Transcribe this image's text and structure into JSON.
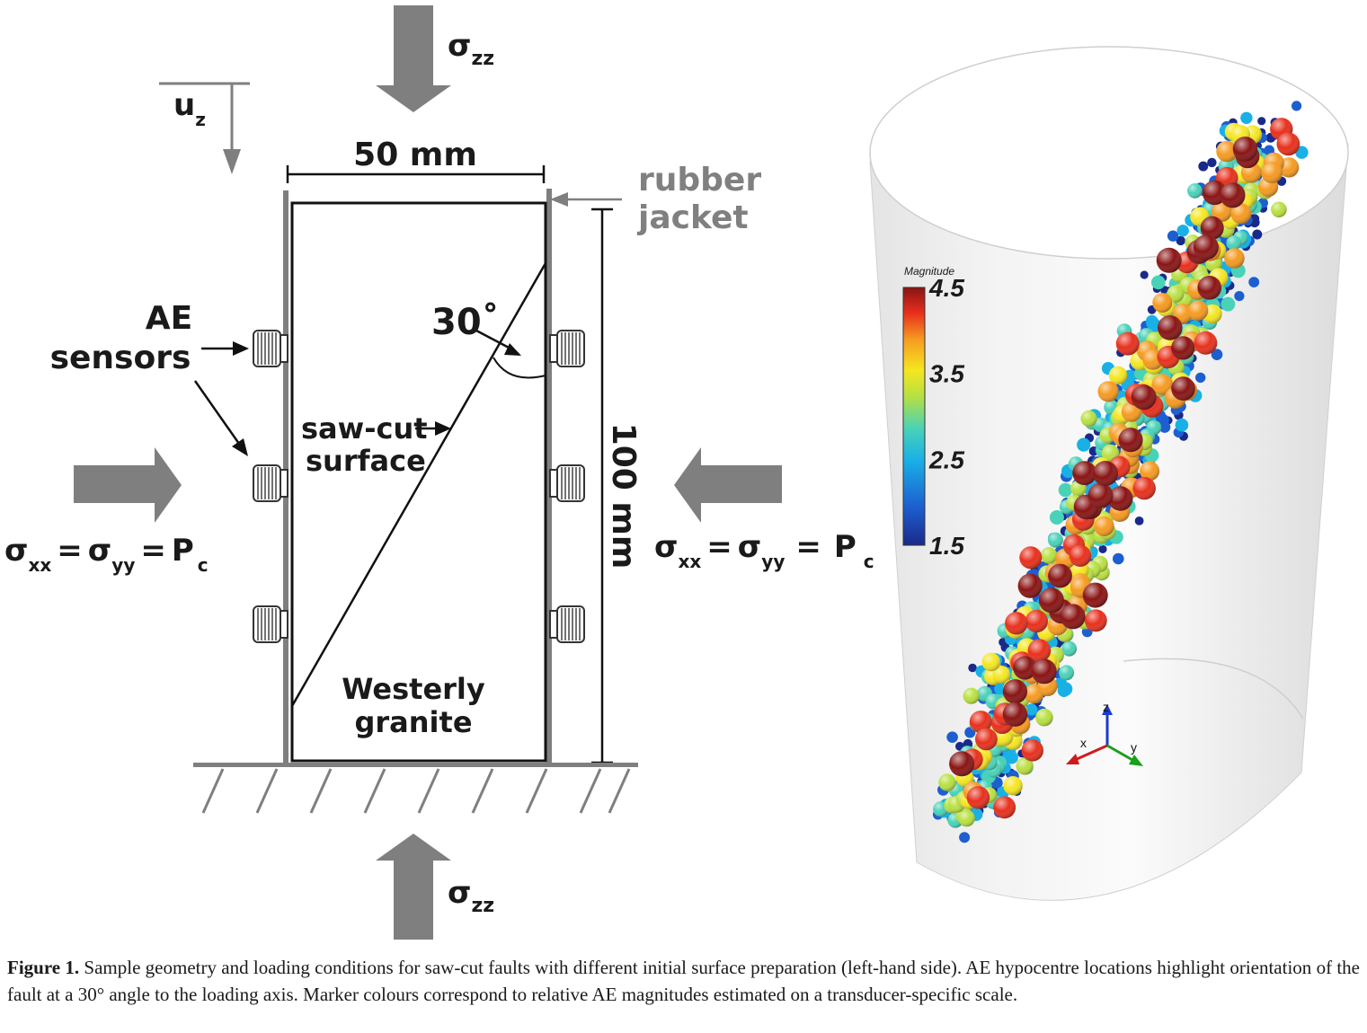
{
  "diagram": {
    "sigma_zz_top": {
      "base": "σ",
      "sub": "zz"
    },
    "sigma_zz_bottom": {
      "base": "σ",
      "sub": "zz"
    },
    "uz": {
      "base": "u",
      "sub": "z"
    },
    "width_label": "50 mm",
    "height_label": "100 mm",
    "jacket_line1": "rubber",
    "jacket_line2": "jacket",
    "sensors_line1": "AE",
    "sensors_line2": "sensors",
    "angle_label": "30˚",
    "sawcut_line1": "saw-cut",
    "sawcut_line2": "surface",
    "granite_line1": "Westerly",
    "granite_line2": "granite",
    "pressure_left": {
      "s1": "σ",
      "sub1": "xx",
      "eq1": "=",
      "s2": "σ",
      "sub2": "yy",
      "eq2": "=",
      "p": "P",
      "subp": "c"
    },
    "pressure_right": {
      "s1": "σ",
      "sub1": "xx",
      "eq1": "=",
      "s2": "σ",
      "sub2": "yy",
      "eq2": "=",
      "p": "P",
      "subp": "c"
    }
  },
  "colorbar": {
    "title": "Magnitude",
    "ticks": [
      "4.5",
      "3.5",
      "2.5",
      "1.5"
    ],
    "min": 1.5,
    "max": 4.5,
    "colormap": [
      "#1a2a8a",
      "#1d5fd0",
      "#19b0e6",
      "#48d2b8",
      "#b8e040",
      "#f5e620",
      "#f59a20",
      "#e8301c",
      "#8a1414"
    ]
  },
  "axes_triad": {
    "x": "x",
    "y": "y",
    "z": "z"
  },
  "caption": {
    "label": "Figure 1.",
    "text": " Sample geometry and loading conditions for saw-cut faults with different initial surface preparation (left-hand side). AE hypocentre locations highlight orientation of the fault at a 30° angle to the loading axis. Marker colours correspond to relative AE magnitudes estimated on a transducer-specific scale."
  }
}
